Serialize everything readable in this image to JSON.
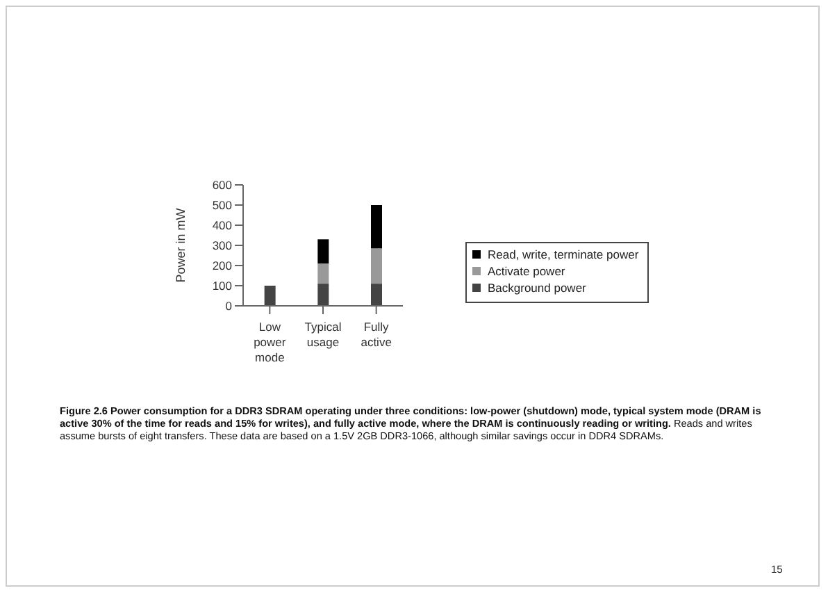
{
  "chart_data": {
    "type": "bar",
    "stacked": true,
    "ylabel": "Power in mW",
    "categories": [
      "Low power mode",
      "Typical usage",
      "Fully active"
    ],
    "series": [
      {
        "name": "Background power",
        "color": "#444444",
        "values": [
          100,
          110,
          110
        ]
      },
      {
        "name": "Activate power",
        "color": "#999999",
        "values": [
          0,
          100,
          175
        ]
      },
      {
        "name": "Read, write, terminate power",
        "color": "#000000",
        "values": [
          0,
          120,
          215
        ]
      }
    ],
    "ylim": [
      0,
      600
    ],
    "yticks": [
      0,
      100,
      200,
      300,
      400,
      500,
      600
    ],
    "grid": false,
    "legend": "right",
    "annotations": [
      "Figure 2.6 Power consumption for a DDR3 SDRAM operating under three conditions: low-power (shutdown) mode, typical system mode (DRAM is active 30% of the time for reads and 15% for writes), and fully active mode, where the DRAM is continuously reading or writing.",
      "Reads and writes assume bursts of eight transfers. These data are based on a 1.5V 2GB DDR3-1066, although similar savings occur in DDR4 SDRAMs.",
      "15"
    ]
  }
}
